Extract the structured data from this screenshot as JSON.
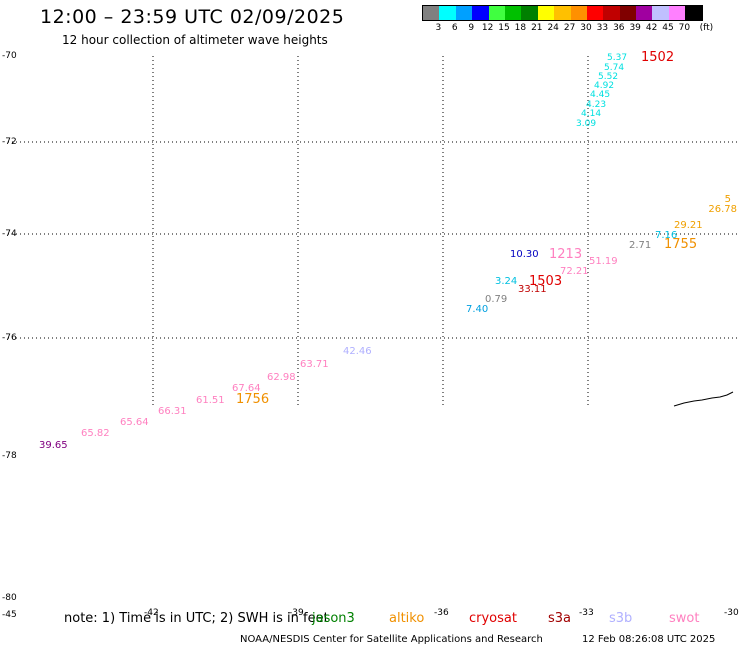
{
  "header": {
    "title": "12:00 – 23:59 UTC 02/09/2025",
    "subtitle": "12 hour collection of altimeter wave heights"
  },
  "legend": {
    "colors": [
      "#808080",
      "#00ffff",
      "#00a0ff",
      "#0000ff",
      "#40ff40",
      "#00c000",
      "#008000",
      "#ffff00",
      "#ffc000",
      "#ff9000",
      "#ff0000",
      "#c00000",
      "#800000",
      "#a000a0",
      "#c0c0ff",
      "#ff80ff",
      "#000000"
    ],
    "labels": [
      "3",
      "6",
      "9",
      "12",
      "15",
      "18",
      "21",
      "24",
      "27",
      "30",
      "33",
      "36",
      "39",
      "42",
      "45",
      "70",
      "(ft)"
    ]
  },
  "map": {
    "lat_labels": [
      "-70",
      "-72",
      "-74",
      "-76",
      "-78",
      "-80"
    ],
    "lon_labels": [
      "-45",
      "-42",
      "-39",
      "-36",
      "-33",
      "-30"
    ],
    "observations": [
      {
        "text": "5.37",
        "color": "#00e0e0"
      },
      {
        "text": "5.74",
        "color": "#00e0e0"
      },
      {
        "text": "5.52",
        "color": "#00e0e0"
      },
      {
        "text": "4.92",
        "color": "#00e0e0"
      },
      {
        "text": "4.45",
        "color": "#00e0e0"
      },
      {
        "text": "4.23",
        "color": "#00e0e0"
      },
      {
        "text": "4.14",
        "color": "#00e0e0"
      },
      {
        "text": "3.09",
        "color": "#00e0e0"
      },
      {
        "text": "1502",
        "color": "#e00000"
      },
      {
        "text": "5",
        "color": "#f0a000"
      },
      {
        "text": "26.78",
        "color": "#f0a000"
      },
      {
        "text": "29.21",
        "color": "#f0a000"
      },
      {
        "text": "7.16",
        "color": "#00c0e0"
      },
      {
        "text": "2.71",
        "color": "#808080"
      },
      {
        "text": "1755",
        "color": "#f09000"
      },
      {
        "text": "10.30",
        "color": "#0000c0"
      },
      {
        "text": "1213",
        "color": "#ff80c0"
      },
      {
        "text": "51.19",
        "color": "#ff80c0"
      },
      {
        "text": "72.21",
        "color": "#ff80c0"
      },
      {
        "text": "3.24",
        "color": "#00c0e0"
      },
      {
        "text": "1503",
        "color": "#e00000"
      },
      {
        "text": "33.11",
        "color": "#c00000"
      },
      {
        "text": "0.79",
        "color": "#808080"
      },
      {
        "text": "7.40",
        "color": "#00a0e0"
      },
      {
        "text": "42.46",
        "color": "#b0b0ff"
      },
      {
        "text": "63.71",
        "color": "#ff80c0"
      },
      {
        "text": "62.98",
        "color": "#ff80c0"
      },
      {
        "text": "67.64",
        "color": "#ff80c0"
      },
      {
        "text": "1756",
        "color": "#f09000"
      },
      {
        "text": "61.51",
        "color": "#ff80c0"
      },
      {
        "text": "66.31",
        "color": "#ff80c0"
      },
      {
        "text": "65.64",
        "color": "#ff80c0"
      },
      {
        "text": "65.82",
        "color": "#ff80c0"
      },
      {
        "text": "39.65",
        "color": "#800080"
      }
    ]
  },
  "footer": {
    "note": "note: 1) Time is in UTC; 2) SWH is in feet",
    "missions": [
      {
        "name": "jason3",
        "color": "#008000"
      },
      {
        "name": "altiko",
        "color": "#f09000"
      },
      {
        "name": "cryosat",
        "color": "#e00000"
      },
      {
        "name": "s3a",
        "color": "#a00000"
      },
      {
        "name": "s3b",
        "color": "#b0b0ff"
      },
      {
        "name": "swot",
        "color": "#ff80c0"
      }
    ],
    "credit": "NOAA/NESDIS Center for Satellite Applications and Research",
    "timestamp": "12 Feb 08:26:08 UTC 2025"
  }
}
